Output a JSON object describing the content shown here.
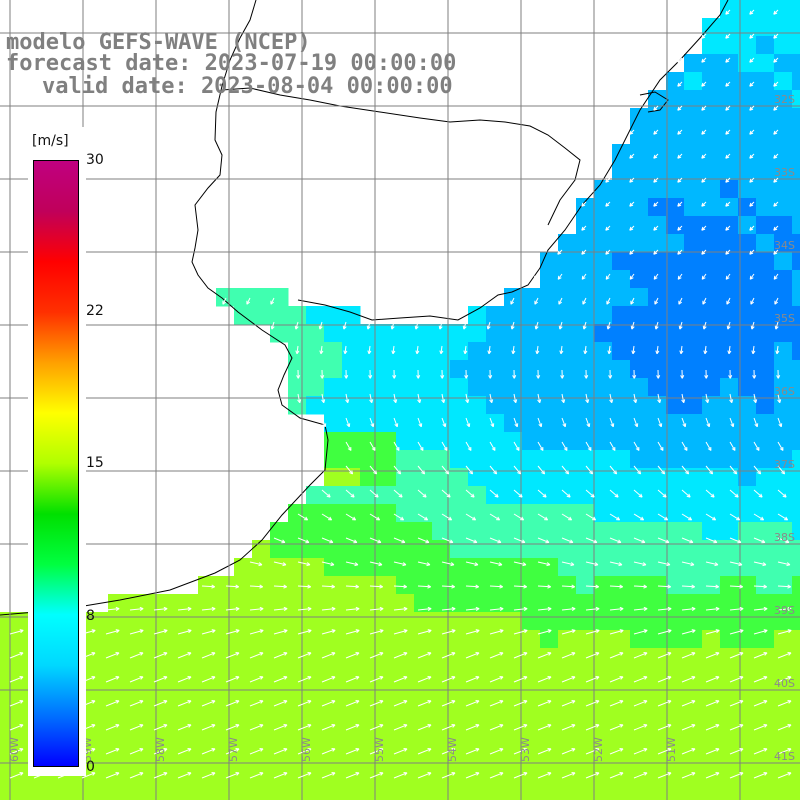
{
  "title": {
    "line1": "modelo GEFS-WAVE (NCEP)",
    "line2": "forecast date: 2023-07-19 00:00:00",
    "line3": "valid date: 2023-08-04 00:00:00"
  },
  "colorbar": {
    "unit": "[m/s]",
    "ticks": [
      "30",
      "22",
      "15",
      "8",
      "0"
    ],
    "colors": [
      "#0000ff",
      "#0070ff",
      "#00d8ff",
      "#00ffff",
      "#00ff40",
      "#00e000",
      "#b0ff00",
      "#ffff00",
      "#ffa000",
      "#ff3000",
      "#ff0000",
      "#c0005a",
      "#c00080"
    ]
  },
  "map": {
    "lat_labels": [
      "32S",
      "33S",
      "34S",
      "35S",
      "36S",
      "37S",
      "38S",
      "39S",
      "40S",
      "41S"
    ],
    "lon_labels": [
      "60W",
      "59W",
      "58W",
      "57W",
      "56W",
      "55W",
      "54W",
      "53W",
      "52W",
      "51W"
    ],
    "ocean_palette": [
      "#0050f0",
      "#0080ff",
      "#00b8ff",
      "#00e8ff",
      "#40ffb0",
      "#40ff40",
      "#a0ff20"
    ],
    "land_color": "#ffffff",
    "coast_color": "#000000",
    "grid_color": "#7f7f7f",
    "arrow_color": "#ffffff"
  }
}
